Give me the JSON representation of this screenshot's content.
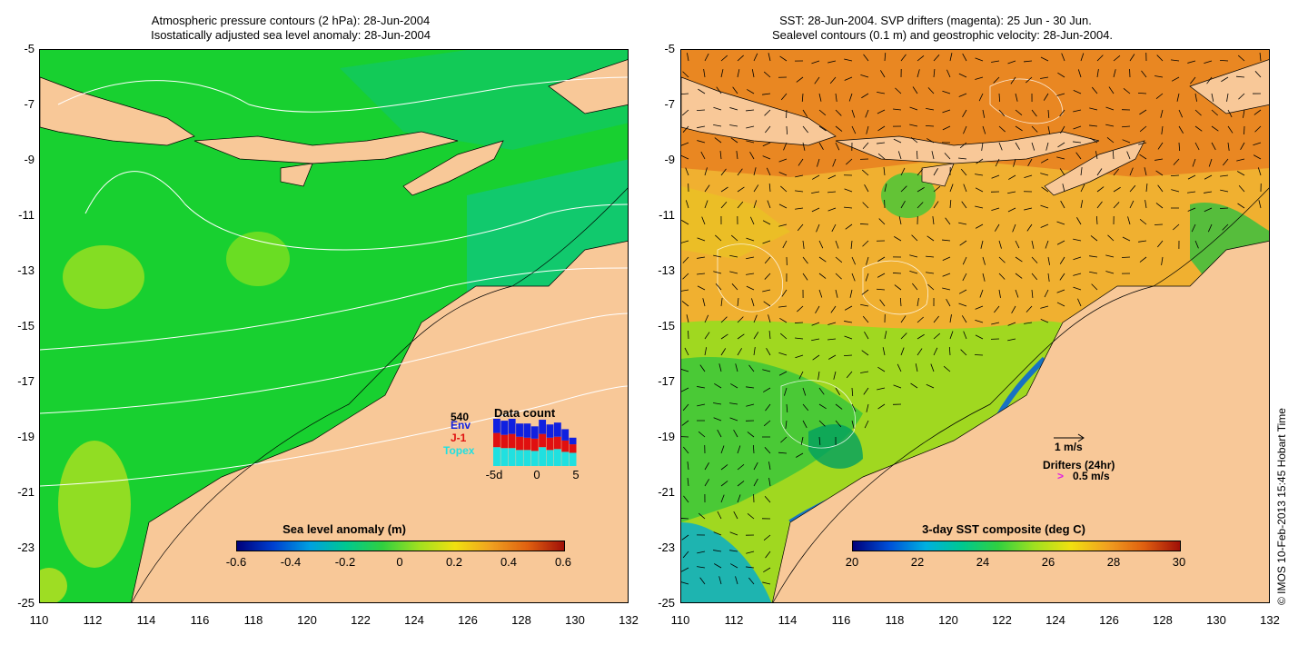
{
  "left_panel": {
    "title_line1": "Atmospheric pressure contours (2 hPa): 28-Jun-2004",
    "title_line2": "Isostatically adjusted sea level anomaly: 28-Jun-2004",
    "colorbar_title": "Sea level anomaly (m)",
    "colorbar_ticks": [
      "-0.6",
      "-0.4",
      "-0.2",
      "0",
      "0.2",
      "0.4",
      "0.6"
    ],
    "colorbar_colors": [
      "#00007a",
      "#0040d0",
      "#00a0e0",
      "#00c890",
      "#30d040",
      "#a0e020",
      "#f0e010",
      "#f0a020",
      "#e06010",
      "#a01008"
    ],
    "data_count": {
      "title": "Data count",
      "max_label": "540",
      "legend": [
        "Env",
        "J-1",
        "Topex"
      ],
      "legend_colors": [
        "#1020e0",
        "#e01010",
        "#20e0e0"
      ],
      "x_ticks": [
        "-5d",
        "0",
        "5"
      ],
      "bars": [
        {
          "env": 0.3,
          "j1": 0.3,
          "topex": 0.4
        },
        {
          "env": 0.3,
          "j1": 0.28,
          "topex": 0.38
        },
        {
          "env": 0.35,
          "j1": 0.3,
          "topex": 0.38
        },
        {
          "env": 0.28,
          "j1": 0.28,
          "topex": 0.34
        },
        {
          "env": 0.3,
          "j1": 0.26,
          "topex": 0.34
        },
        {
          "env": 0.26,
          "j1": 0.26,
          "topex": 0.32
        },
        {
          "env": 0.3,
          "j1": 0.28,
          "topex": 0.4
        },
        {
          "env": 0.28,
          "j1": 0.26,
          "topex": 0.34
        },
        {
          "env": 0.3,
          "j1": 0.26,
          "topex": 0.36
        },
        {
          "env": 0.24,
          "j1": 0.24,
          "topex": 0.3
        },
        {
          "env": 0.14,
          "j1": 0.18,
          "topex": 0.28
        }
      ]
    }
  },
  "right_panel": {
    "title_line1": "SST: 28-Jun-2004. SVP drifters (magenta): 25 Jun - 30 Jun.",
    "title_line2": "Sealevel contours (0.1 m) and geostrophic velocity: 28-Jun-2004.",
    "colorbar_title": "3-day SST composite (deg C)",
    "colorbar_ticks": [
      "20",
      "22",
      "24",
      "26",
      "28",
      "30"
    ],
    "colorbar_colors": [
      "#00007a",
      "#0050d8",
      "#00b0e0",
      "#00c890",
      "#30d040",
      "#a0e020",
      "#f0e010",
      "#f0a020",
      "#e06010",
      "#a01008"
    ],
    "velocity_scale_label": "1 m/s",
    "drifters_label": "Drifters (24hr)",
    "drifter_scale_symbol": ">",
    "drifter_scale_label": "0.5 m/s"
  },
  "y_ticks": [
    "-5",
    "-7",
    "-9",
    "-11",
    "-13",
    "-15",
    "-17",
    "-19",
    "-21",
    "-23",
    "-25"
  ],
  "x_ticks": [
    "110",
    "112",
    "114",
    "116",
    "118",
    "120",
    "122",
    "124",
    "126",
    "128",
    "130",
    "132"
  ],
  "credit": "© IMOS 10-Feb-2013 15:45 Hobart Time",
  "colors": {
    "land": "#f8c898",
    "ocean_green": "#10d030",
    "ocean_teal": "#10c880",
    "sst_orange": "#f0a030",
    "sst_yellow": "#e8e020"
  }
}
